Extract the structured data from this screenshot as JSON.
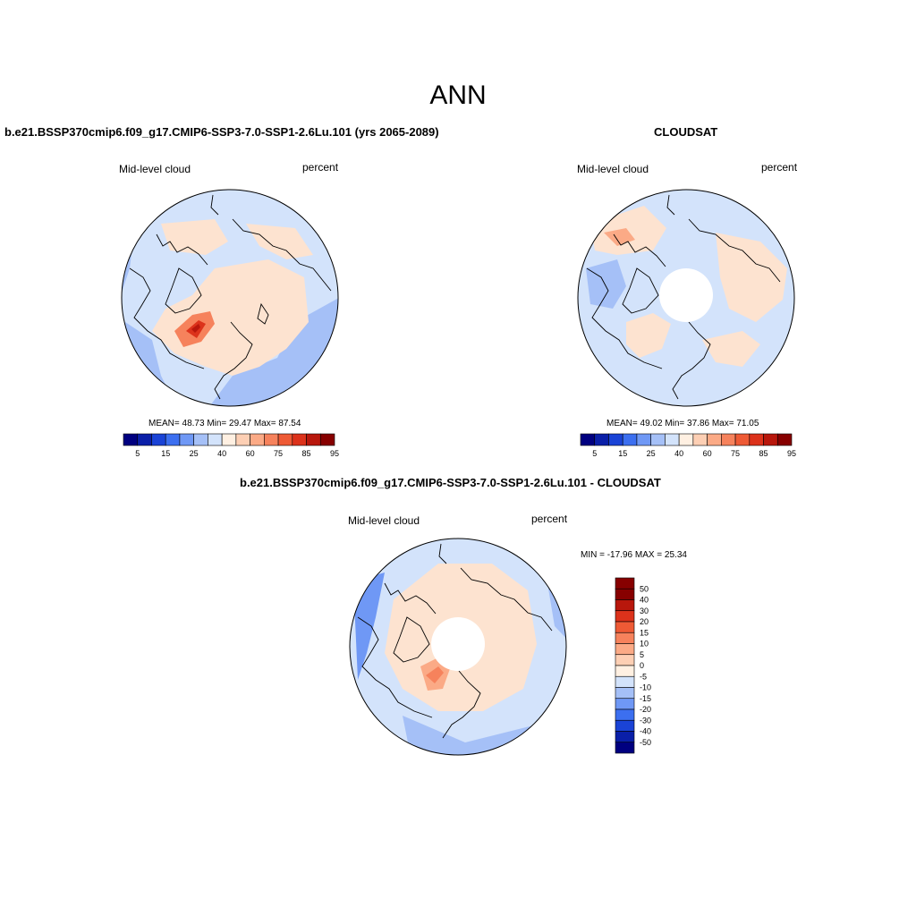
{
  "season": "ANN",
  "panels": [
    {
      "case_title": "b.e21.BSSP370cmip6.f09_g17.CMIP6-SSP3-7.0-SSP1-2.6Lu.101 (yrs 2065-2089)",
      "variable": "Mid-level cloud",
      "units": "percent",
      "stats": "MEAN=  48.73  Min=  29.47  Max=  87.54",
      "mean": 48.73,
      "min": 29.47,
      "max": 87.54
    },
    {
      "case_title": "CLOUDSAT",
      "variable": "Mid-level cloud",
      "units": "percent",
      "stats": "MEAN=  49.02  Min=  37.86  Max=  71.05",
      "mean": 49.02,
      "min": 37.86,
      "max": 71.05
    },
    {
      "case_title": "b.e21.BSSP370cmip6.f09_g17.CMIP6-SSP3-7.0-SSP1-2.6Lu.101 - CLOUDSAT",
      "variable": "Mid-level cloud",
      "units": "percent",
      "stats": "MIN = -17.96 MAX =  25.34",
      "min": -17.96,
      "max": 25.34
    }
  ],
  "colorbar_abs": {
    "labels": [
      "5",
      "15",
      "25",
      "40",
      "60",
      "75",
      "85",
      "95"
    ],
    "colors": [
      "#000080",
      "#0a1fa8",
      "#1a43d6",
      "#3c6ff0",
      "#6f98f5",
      "#a5c0f7",
      "#d3e3fb",
      "#fff0e2",
      "#fdcfb4",
      "#fbaa86",
      "#f6825c",
      "#ee5a35",
      "#dc321b",
      "#b8170c",
      "#870000"
    ]
  },
  "colorbar_diff": {
    "labels": [
      "50",
      "40",
      "30",
      "20",
      "15",
      "10",
      "5",
      "0",
      "-5",
      "-10",
      "-15",
      "-20",
      "-30",
      "-40",
      "-50"
    ],
    "colors": [
      "#870000",
      "#b8170c",
      "#dc321b",
      "#ee5a35",
      "#f6825c",
      "#fbaa86",
      "#fdcfb4",
      "#fff0e2",
      "#d3e3fb",
      "#a5c0f7",
      "#6f98f5",
      "#3c6ff0",
      "#1a43d6",
      "#0a1fa8",
      "#000080"
    ]
  }
}
